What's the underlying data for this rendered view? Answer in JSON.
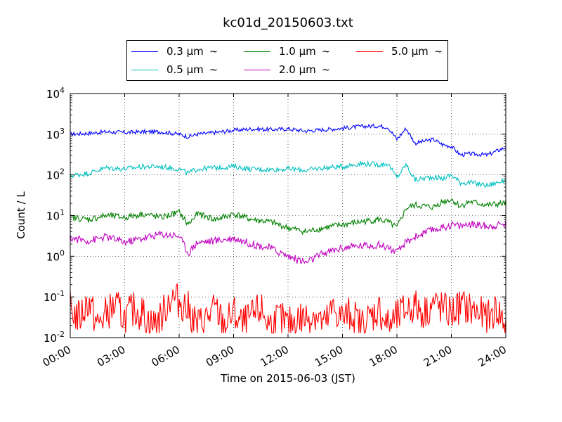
{
  "chart_data": {
    "type": "line",
    "title": "kc01d_20150603.txt",
    "xlabel": "Time on 2015-06-03 (JST)",
    "ylabel": "Count / L",
    "y_scale": "log",
    "ylim": [
      0.01,
      10000
    ],
    "xlim_hours": [
      0,
      24
    ],
    "grid": true,
    "legend_position": "top-center",
    "x_ticks": [
      "00:00",
      "03:00",
      "06:00",
      "09:00",
      "12:00",
      "15:00",
      "18:00",
      "21:00",
      "24:00"
    ],
    "y_ticks": [
      {
        "base": "10",
        "exp": "-2"
      },
      {
        "base": "10",
        "exp": "-1"
      },
      {
        "base": "10",
        "exp": "0"
      },
      {
        "base": "10",
        "exp": "1"
      },
      {
        "base": "10",
        "exp": "2"
      },
      {
        "base": "10",
        "exp": "3"
      },
      {
        "base": "10",
        "exp": "4"
      }
    ],
    "series": [
      {
        "name": "0.3 μm",
        "color": "#0000ff",
        "x": [
          0,
          1,
          2,
          3,
          4,
          5,
          6,
          6.5,
          7,
          8,
          9,
          10,
          11,
          12,
          13,
          14,
          15,
          16,
          17,
          17.5,
          18,
          18.5,
          19,
          20,
          20.5,
          21,
          21.5,
          22,
          23,
          24
        ],
        "y": [
          1000,
          1050,
          1150,
          1100,
          1150,
          1150,
          1000,
          870,
          1000,
          1100,
          1250,
          1350,
          1300,
          1350,
          1200,
          1300,
          1400,
          1550,
          1600,
          1500,
          750,
          1400,
          600,
          750,
          560,
          500,
          310,
          330,
          310,
          480
        ]
      },
      {
        "name": "0.5 μm",
        "color": "#00c0c0",
        "x": [
          0,
          1,
          2,
          3,
          4,
          5,
          6,
          6.5,
          7,
          8,
          9,
          10,
          11,
          12,
          13,
          14,
          15,
          16,
          17,
          17.5,
          18,
          18.5,
          19,
          20,
          20.5,
          21,
          21.5,
          22,
          23,
          24
        ],
        "y": [
          95,
          110,
          150,
          140,
          160,
          160,
          140,
          110,
          140,
          150,
          160,
          140,
          135,
          140,
          130,
          150,
          160,
          190,
          180,
          190,
          85,
          180,
          75,
          90,
          80,
          100,
          65,
          65,
          55,
          75
        ]
      },
      {
        "name": "1.0 μm",
        "color": "#008000",
        "x": [
          0,
          1,
          2,
          3,
          4,
          5,
          6,
          6.5,
          7,
          8,
          9,
          10,
          11,
          12,
          13,
          14,
          15,
          16,
          17,
          17.5,
          18,
          18.5,
          19,
          20,
          20.5,
          21,
          21.5,
          22,
          23,
          24
        ],
        "y": [
          9,
          8,
          10,
          9,
          11,
          9,
          12,
          6,
          11,
          8,
          11,
          8,
          7,
          5,
          4,
          5,
          6,
          7,
          8,
          7,
          5,
          15,
          18,
          16,
          22,
          25,
          17,
          22,
          18,
          20
        ]
      },
      {
        "name": "2.0 μm",
        "color": "#c000c0",
        "x": [
          0,
          1,
          2,
          3,
          4,
          5,
          6,
          6.5,
          7,
          8,
          9,
          10,
          11,
          12,
          13,
          14,
          15,
          16,
          17,
          17.5,
          18,
          18.5,
          19,
          20,
          20.5,
          21,
          21.5,
          22,
          23,
          24
        ],
        "y": [
          2.8,
          2.4,
          3.0,
          2.2,
          2.8,
          3.5,
          3.2,
          1.2,
          2.2,
          2.4,
          2.8,
          2.0,
          1.6,
          1.0,
          0.7,
          1.2,
          1.6,
          1.8,
          1.9,
          1.7,
          1.2,
          2.2,
          3.0,
          4.5,
          5.0,
          6.0,
          5.5,
          6.2,
          5.5,
          6.2
        ]
      },
      {
        "name": "5.0 μm",
        "color": "#ff0000",
        "x": [
          0,
          0.5,
          1,
          1.5,
          2,
          2.5,
          3,
          3.5,
          4,
          4.5,
          5,
          5.5,
          6,
          6.5,
          7,
          7.5,
          8,
          8.5,
          9,
          9.5,
          10,
          10.5,
          11,
          11.5,
          12,
          12.5,
          13,
          13.5,
          14,
          14.5,
          15,
          15.5,
          16,
          16.5,
          17,
          17.5,
          18,
          18.5,
          19,
          19.5,
          20,
          20.5,
          21,
          21.5,
          22,
          22.5,
          23,
          23.5,
          24
        ],
        "y": [
          0.05,
          0.03,
          0.08,
          0.02,
          0.04,
          0.06,
          0.03,
          0.05,
          0.04,
          0.02,
          0.03,
          0.1,
          0.08,
          0.05,
          0.02,
          0.03,
          0.05,
          0.02,
          0.04,
          0.02,
          0.03,
          0.05,
          0.02,
          0.03,
          0.02,
          0.03,
          0.03,
          0.04,
          0.02,
          0.05,
          0.03,
          0.04,
          0.02,
          0.03,
          0.05,
          0.02,
          0.03,
          0.05,
          0.06,
          0.04,
          0.07,
          0.05,
          0.04,
          0.06,
          0.05,
          0.04,
          0.03,
          0.05,
          0.02
        ]
      }
    ]
  }
}
